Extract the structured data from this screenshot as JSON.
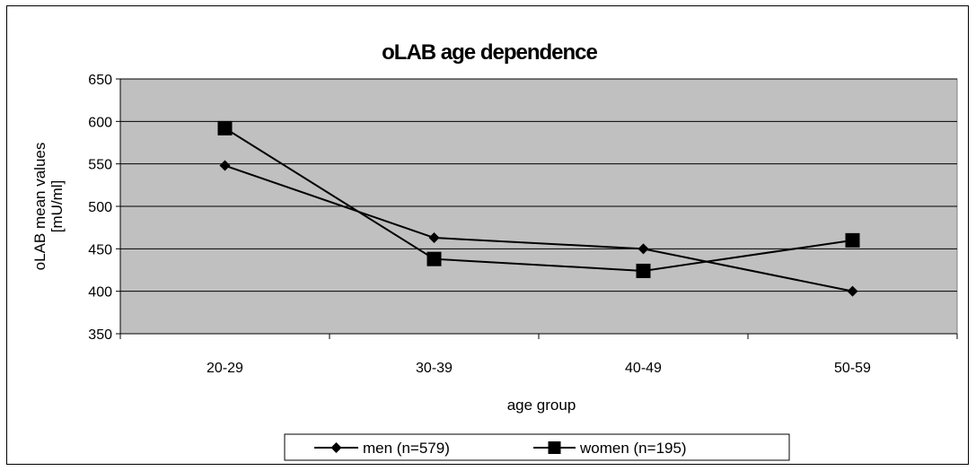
{
  "chart_data": {
    "type": "line",
    "title": "oLAB age dependence",
    "xlabel": "age group",
    "ylabel_lines": [
      "oLAB mean values",
      "[mU/ml]"
    ],
    "categories": [
      "20-29",
      "30-39",
      "40-49",
      "50-59"
    ],
    "ylim": [
      350,
      650
    ],
    "yticks": [
      350,
      400,
      450,
      500,
      550,
      600,
      650
    ],
    "grid": true,
    "legend_position": "bottom",
    "series": [
      {
        "name": "men (n=579)",
        "marker": "diamond",
        "values": [
          548,
          463,
          450,
          400
        ]
      },
      {
        "name": "women (n=195)",
        "marker": "square",
        "values": [
          592,
          438,
          424,
          460
        ]
      }
    ],
    "colors": {
      "plot_background": "#c0c0c0",
      "line": "#000000"
    }
  }
}
